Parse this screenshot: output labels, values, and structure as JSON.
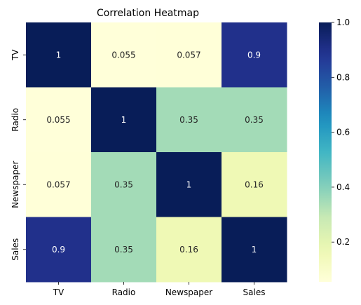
{
  "chart_data": {
    "type": "heatmap",
    "title": "Correlation Heatmap",
    "x_labels": [
      "TV",
      "Radio",
      "Newspaper",
      "Sales"
    ],
    "y_labels": [
      "TV",
      "Radio",
      "Newspaper",
      "Sales"
    ],
    "values": [
      [
        1,
        0.055,
        0.057,
        0.9
      ],
      [
        0.055,
        1,
        0.35,
        0.35
      ],
      [
        0.057,
        0.35,
        1,
        0.16
      ],
      [
        0.9,
        0.35,
        0.16,
        1
      ]
    ],
    "cell_labels": [
      [
        "1",
        "0.055",
        "0.057",
        "0.9"
      ],
      [
        "0.055",
        "1",
        "0.35",
        "0.35"
      ],
      [
        "0.057",
        "0.35",
        "1",
        "0.16"
      ],
      [
        "0.9",
        "0.35",
        "0.16",
        "1"
      ]
    ],
    "vmin": 0.055,
    "vmax": 1.0,
    "colormap": "YlGnBu",
    "colorbar_ticks": [
      0.2,
      0.4,
      0.6,
      0.8,
      1.0
    ],
    "colorbar_tick_labels": [
      "0.2",
      "0.4",
      "0.6",
      "0.8",
      "1.0"
    ],
    "legend_placement": "right"
  }
}
